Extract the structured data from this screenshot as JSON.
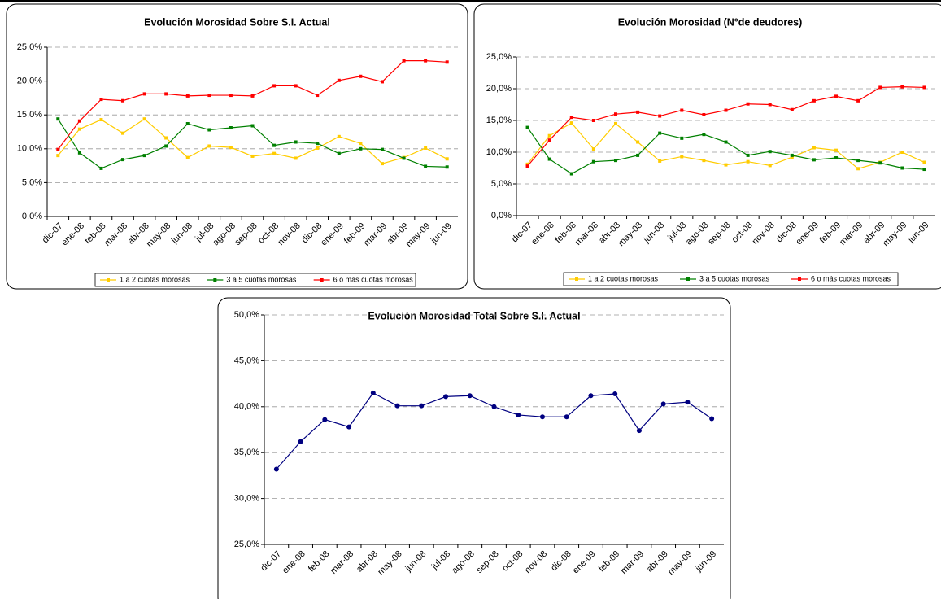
{
  "chart_data": [
    {
      "type": "line",
      "title": "Evolución Morosidad Sobre S.I. Actual",
      "categories": [
        "dic-07",
        "ene-08",
        "feb-08",
        "mar-08",
        "abr-08",
        "may-08",
        "jun-08",
        "jul-08",
        "ago-08",
        "sep-08",
        "oct-08",
        "nov-08",
        "dic-08",
        "ene-09",
        "feb-09",
        "mar-09",
        "abr-09",
        "may-09",
        "jun-09"
      ],
      "series": [
        {
          "name": "1 a 2 cuotas morosas",
          "color": "#ffcc00",
          "values": [
            9.0,
            12.9,
            14.3,
            12.3,
            14.4,
            11.6,
            8.7,
            10.4,
            10.2,
            8.9,
            9.3,
            8.6,
            10.1,
            11.8,
            10.8,
            7.8,
            8.7,
            10.1,
            8.5
          ]
        },
        {
          "name": "3 a 5 cuotas morosas",
          "color": "#008000",
          "values": [
            14.4,
            9.4,
            7.1,
            8.4,
            9.0,
            10.4,
            13.7,
            12.8,
            13.1,
            13.4,
            10.5,
            11.0,
            10.8,
            9.3,
            10.0,
            9.9,
            8.6,
            7.4,
            7.3
          ]
        },
        {
          "name": "6 o más cuotas morosas",
          "color": "#ff0000",
          "values": [
            9.9,
            14.1,
            17.3,
            17.1,
            18.1,
            18.1,
            17.8,
            17.9,
            17.9,
            17.8,
            19.3,
            19.3,
            17.9,
            20.1,
            20.7,
            19.9,
            23.0,
            23.0,
            22.8
          ]
        }
      ],
      "ylim": [
        0,
        25
      ],
      "yticks": [
        {
          "value": 0,
          "label": "0,0%"
        },
        {
          "value": 5,
          "label": "5,0%"
        },
        {
          "value": 10,
          "label": "10,0%"
        },
        {
          "value": 15,
          "label": "15,0%"
        },
        {
          "value": 20,
          "label": "20,0%"
        },
        {
          "value": 25,
          "label": "25,0%"
        }
      ],
      "grid": true,
      "legend": "bottom"
    },
    {
      "type": "line",
      "title": "Evolución Morosidad (N°de deudores)",
      "categories": [
        "dic-07",
        "ene-08",
        "feb-08",
        "mar-08",
        "abr-08",
        "may-08",
        "jun-08",
        "jul-08",
        "ago-08",
        "sep-08",
        "oct-08",
        "nov-08",
        "dic-08",
        "ene-09",
        "feb-09",
        "mar-09",
        "abr-09",
        "may-09",
        "jun-09"
      ],
      "series": [
        {
          "name": "1 a 2 cuotas morosas",
          "color": "#ffcc00",
          "values": [
            8.1,
            12.6,
            14.6,
            10.5,
            14.5,
            11.6,
            8.6,
            9.3,
            8.7,
            8.0,
            8.5,
            7.9,
            9.2,
            10.7,
            10.3,
            7.4,
            8.4,
            10.0,
            8.4
          ]
        },
        {
          "name": "3 a 5 cuotas morosas",
          "color": "#008000",
          "values": [
            13.9,
            8.9,
            6.6,
            8.5,
            8.7,
            9.5,
            13.0,
            12.2,
            12.8,
            11.6,
            9.5,
            10.1,
            9.5,
            8.8,
            9.1,
            8.7,
            8.3,
            7.5,
            7.3
          ]
        },
        {
          "name": "6 o más cuotas morosas",
          "color": "#ff0000",
          "values": [
            7.8,
            11.9,
            15.5,
            15.0,
            16.0,
            16.3,
            15.7,
            16.6,
            15.9,
            16.6,
            17.6,
            17.5,
            16.7,
            18.1,
            18.8,
            18.1,
            20.2,
            20.3,
            20.2
          ]
        }
      ],
      "ylim": [
        0,
        25
      ],
      "yticks": [
        {
          "value": 0,
          "label": "0,0%"
        },
        {
          "value": 5,
          "label": "5,0%"
        },
        {
          "value": 10,
          "label": "10,0%"
        },
        {
          "value": 15,
          "label": "15,0%"
        },
        {
          "value": 20,
          "label": "20,0%"
        },
        {
          "value": 25,
          "label": "25,0%"
        }
      ],
      "grid": true,
      "legend": "bottom"
    },
    {
      "type": "line",
      "title": "Evolución Morosidad Total Sobre S.I. Actual",
      "categories": [
        "dic-07",
        "ene-08",
        "feb-08",
        "mar-08",
        "abr-08",
        "may-08",
        "jun-08",
        "jul-08",
        "ago-08",
        "sep-08",
        "oct-08",
        "nov-08",
        "dic-08",
        "ene-09",
        "feb-09",
        "mar-09",
        "abr-09",
        "may-09",
        "jun-09"
      ],
      "series": [
        {
          "color": "#000080",
          "values": [
            33.2,
            36.2,
            38.6,
            37.8,
            41.5,
            40.1,
            40.1,
            41.1,
            41.2,
            40.0,
            39.1,
            38.9,
            38.9,
            41.2,
            41.4,
            37.4,
            40.3,
            40.5,
            38.7
          ]
        }
      ],
      "ylim": [
        25,
        50
      ],
      "yticks": [
        {
          "value": 25,
          "label": "25,0%"
        },
        {
          "value": 30,
          "label": "30,0%"
        },
        {
          "value": 35,
          "label": "35,0%"
        },
        {
          "value": 40,
          "label": "40,0%"
        },
        {
          "value": 45,
          "label": "45,0%"
        },
        {
          "value": 50,
          "label": "50,0%"
        }
      ],
      "grid": true,
      "marker": "circle"
    }
  ]
}
